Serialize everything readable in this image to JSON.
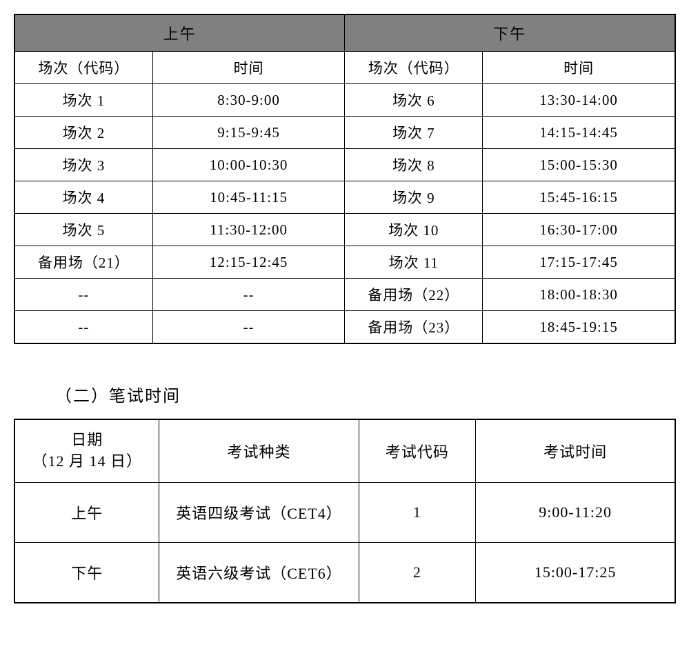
{
  "schedule_table": {
    "type": "table",
    "header_bg": "#808080",
    "border_color": "#000000",
    "columns": [
      "场次（代码）",
      "时间",
      "场次（代码）",
      "时间"
    ],
    "group_headers": [
      "上午",
      "下午"
    ],
    "rows": [
      [
        "场次 1",
        "8:30-9:00",
        "场次 6",
        "13:30-14:00"
      ],
      [
        "场次 2",
        "9:15-9:45",
        "场次 7",
        "14:15-14:45"
      ],
      [
        "场次 3",
        "10:00-10:30",
        "场次 8",
        "15:00-15:30"
      ],
      [
        "场次 4",
        "10:45-11:15",
        "场次 9",
        "15:45-16:15"
      ],
      [
        "场次 5",
        "11:30-12:00",
        "场次 10",
        "16:30-17:00"
      ],
      [
        "备用场（21）",
        "12:15-12:45",
        "场次 11",
        "17:15-17:45"
      ],
      [
        "--",
        "--",
        "备用场（22）",
        "18:00-18:30"
      ],
      [
        "--",
        "--",
        "备用场（23）",
        "18:45-19:15"
      ]
    ]
  },
  "section2_title": "（二）笔试时间",
  "written_table": {
    "type": "table",
    "border_color": "#000000",
    "columns": [
      "日期\n（12 月 14 日）",
      "考试种类",
      "考试代码",
      "考试时间"
    ],
    "rows": [
      [
        "上午",
        "英语四级考试（CET4）",
        "1",
        "9:00-11:20"
      ],
      [
        "下午",
        "英语六级考试（CET6）",
        "2",
        "15:00-17:25"
      ]
    ]
  }
}
